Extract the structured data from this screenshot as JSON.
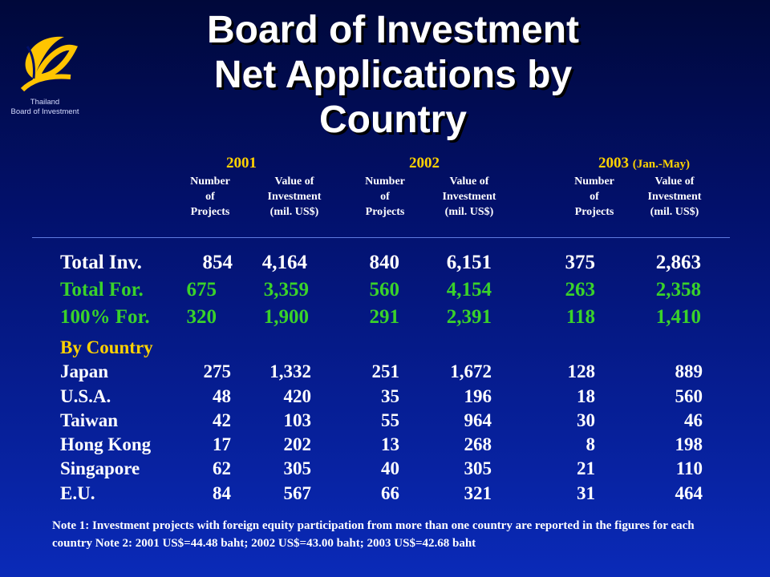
{
  "logo": {
    "caption_line1": "Thailand",
    "caption_line2": "Board of Investment"
  },
  "title": {
    "line1": "Board of Investment",
    "line2": "Net Applications by",
    "line3": "Country"
  },
  "years": [
    {
      "year": "2001",
      "note": ""
    },
    {
      "year": "2002",
      "note": ""
    },
    {
      "year": "2003",
      "note": "(Jan.-May)"
    }
  ],
  "column_headers": {
    "number": [
      "Number",
      "of",
      "Projects"
    ],
    "value": [
      "Value of",
      "Investment",
      "(mil. US$)"
    ]
  },
  "summary_rows": [
    {
      "label": "Total Inv.",
      "values": [
        "854",
        "4,164",
        "840",
        "6,151",
        "375",
        "2,863"
      ]
    },
    {
      "label": "Total For.",
      "values": [
        "675",
        "3,359",
        "560",
        "4,154",
        "263",
        "2,358"
      ]
    },
    {
      "label": "100% For.",
      "values": [
        "320",
        "1,900",
        "291",
        "2,391",
        "118",
        "1,410"
      ]
    }
  ],
  "by_country_label": "By Country",
  "country_rows": [
    {
      "label": "Japan",
      "values": [
        "275",
        "1,332",
        "251",
        "1,672",
        "128",
        "889"
      ]
    },
    {
      "label": "U.S.A.",
      "values": [
        "48",
        "420",
        "35",
        "196",
        "18",
        "560"
      ]
    },
    {
      "label": "Taiwan",
      "values": [
        "42",
        "103",
        "55",
        "964",
        "30",
        "46"
      ]
    },
    {
      "label": "Hong Kong",
      "values": [
        "17",
        "202",
        "13",
        "268",
        "8",
        "198"
      ]
    },
    {
      "label": "Singapore",
      "values": [
        "62",
        "305",
        "40",
        "305",
        "21",
        "110"
      ]
    },
    {
      "label": "E.U.",
      "values": [
        "84",
        "567",
        "66",
        "321",
        "31",
        "464"
      ]
    }
  ],
  "footnote": "Note 1: Investment projects with foreign equity participation from more than one country are reported in the figures for each country Note 2: 2001 US$=44.48 baht; 2002 US$=43.00 baht; 2003 US$=42.68 baht",
  "colors": {
    "background_top": "#00083a",
    "background_bottom": "#0a2ab8",
    "title": "#ffffff",
    "year_heading": "#ffd200",
    "foreign_rows": "#3ad22a",
    "by_country": "#ffd200"
  }
}
